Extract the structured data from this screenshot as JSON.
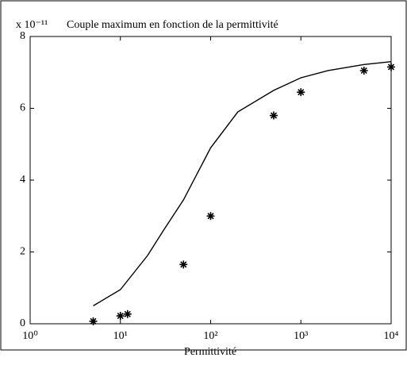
{
  "chart_data": {
    "type": "scatter-line",
    "title": "Couple maximum en fonction de la permittivité",
    "y_multiplier": "x 10⁻¹¹",
    "xlabel": "Permittivité",
    "xscale": "log",
    "xlim": [
      1,
      10000
    ],
    "xticks": [
      {
        "value": 1,
        "label": "10⁰"
      },
      {
        "value": 10,
        "label": "10¹"
      },
      {
        "value": 100,
        "label": "10²"
      },
      {
        "value": 1000,
        "label": "10³"
      },
      {
        "value": 10000,
        "label": "10⁴"
      }
    ],
    "ylim": [
      0,
      8
    ],
    "yticks": [
      0,
      2,
      4,
      6,
      8
    ],
    "series": [
      {
        "kind": "markers",
        "color": "#000000",
        "x": [
          5,
          10,
          12,
          50,
          100,
          500,
          1000,
          5000,
          10000
        ],
        "values": [
          0.07,
          0.22,
          0.27,
          1.65,
          3.0,
          5.8,
          6.45,
          7.05,
          7.15
        ]
      },
      {
        "kind": "line",
        "color": "#000000",
        "x": [
          5,
          10,
          20,
          30,
          50,
          100,
          200,
          500,
          1000,
          2000,
          5000,
          10000
        ],
        "values": [
          0.5,
          0.95,
          1.9,
          2.6,
          3.45,
          4.9,
          5.9,
          6.5,
          6.85,
          7.05,
          7.22,
          7.3
        ]
      }
    ]
  }
}
